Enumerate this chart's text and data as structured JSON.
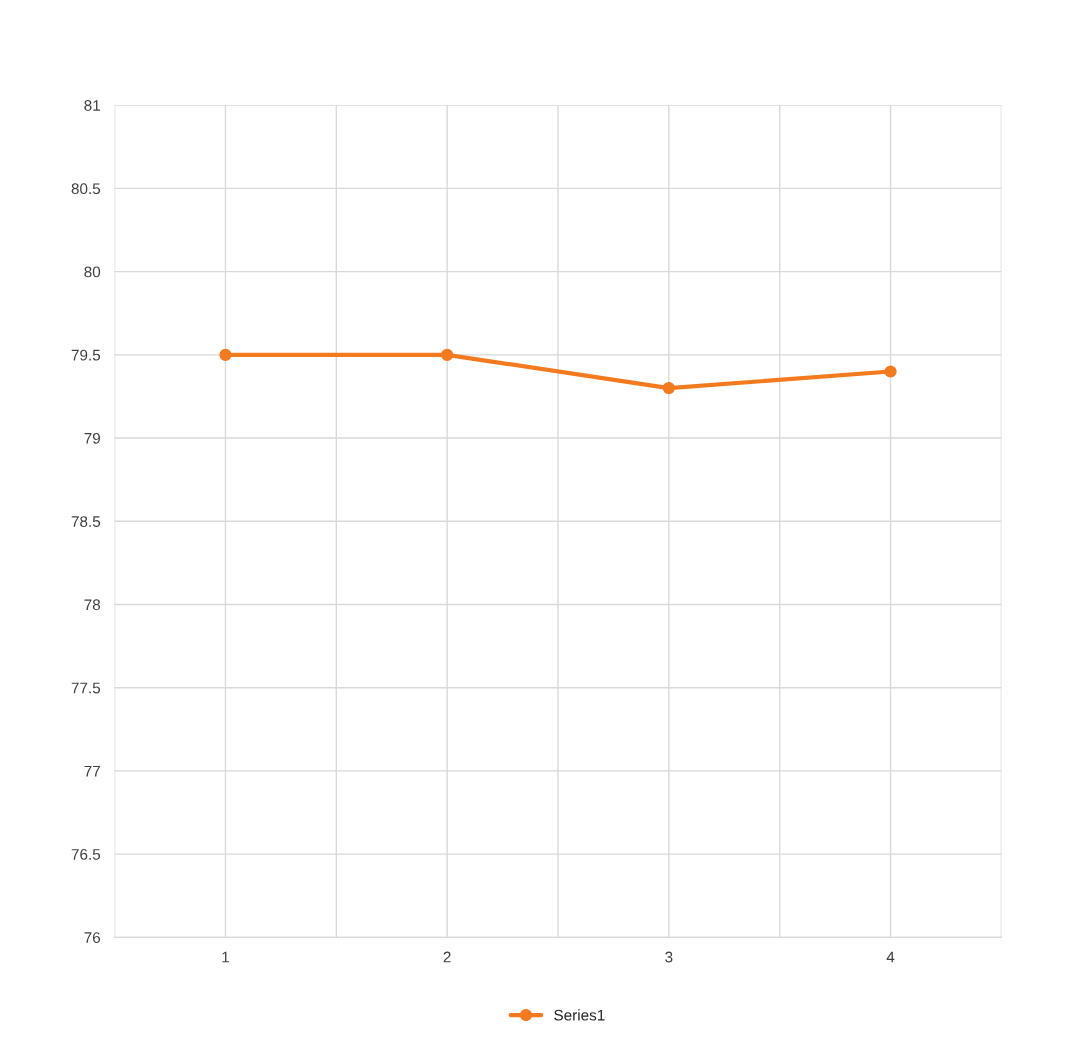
{
  "chart_data": {
    "type": "line",
    "categories": [
      "1",
      "2",
      "3",
      "4"
    ],
    "series": [
      {
        "name": "Series1",
        "color": "#f47a20",
        "values": [
          79.5,
          79.5,
          79.3,
          79.4
        ]
      }
    ],
    "ylim": [
      76,
      81
    ],
    "yticks": [
      76,
      76.5,
      77,
      77.5,
      78,
      78.5,
      79,
      79.5,
      80,
      80.5,
      81
    ],
    "grid": true,
    "legend": "bottom",
    "marker": "circle",
    "line_style": "solid"
  }
}
